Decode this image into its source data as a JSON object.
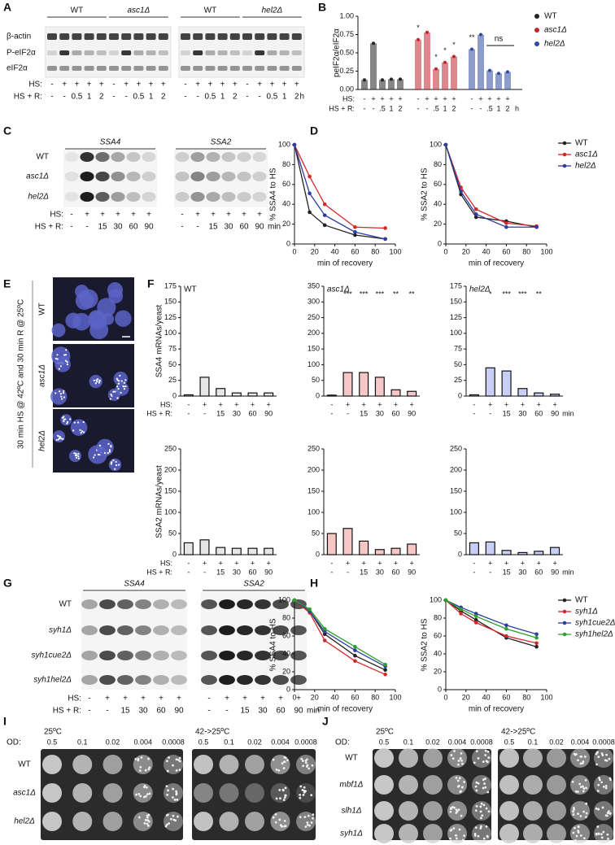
{
  "panels": [
    "A",
    "B",
    "C",
    "D",
    "E",
    "F",
    "G",
    "H",
    "I",
    "J"
  ],
  "blot_a": {
    "groups": [
      "WT",
      "asc1Δ",
      "WT",
      "hel2Δ"
    ],
    "rows": [
      "β-actin",
      "P-eIF2α",
      "eIF2α"
    ],
    "row_labels": [
      "HS:",
      "HS + R:"
    ],
    "hs": [
      "-",
      "+",
      "+",
      "+",
      "+",
      "-",
      "+",
      "+",
      "+",
      "+",
      "-",
      "+",
      "+",
      "+",
      "+",
      "-",
      "+",
      "+",
      "+",
      "+"
    ],
    "hsr": [
      "-",
      "-",
      "0.5",
      "1",
      "2",
      "-",
      "-",
      "0.5",
      "1",
      "2",
      "-",
      "-",
      "0.5",
      "1",
      "2",
      "-",
      "-",
      "0.5",
      "1",
      "2"
    ],
    "unit": "h"
  },
  "blot_c": {
    "genes": [
      "SSA4",
      "SSA2"
    ],
    "strains": [
      "WT",
      "asc1Δ",
      "hel2Δ"
    ],
    "row_labels": [
      "HS:",
      "HS + R:"
    ],
    "hs": [
      "-",
      "+",
      "+",
      "+",
      "+",
      "+",
      "-",
      "+",
      "+",
      "+",
      "+",
      "+"
    ],
    "hsr": [
      "-",
      "-",
      "15",
      "30",
      "60",
      "90",
      "-",
      "-",
      "15",
      "30",
      "60",
      "90"
    ],
    "unit": "min"
  },
  "blot_g": {
    "genes": [
      "SSA4",
      "SSA2"
    ],
    "strains": [
      "WT",
      "syh1Δ",
      "syh1cue2Δ",
      "syh1hel2Δ"
    ],
    "row_labels": [
      "HS:",
      "HS + R:"
    ],
    "hs": [
      "-",
      "+",
      "+",
      "+",
      "+",
      "+",
      "-",
      "+",
      "+",
      "+",
      "+",
      "+"
    ],
    "hsr": [
      "-",
      "-",
      "15",
      "30",
      "60",
      "90",
      "-",
      "-",
      "15",
      "30",
      "60",
      "90"
    ],
    "unit": "min"
  },
  "micrograph": {
    "strains": [
      "WT",
      "asc1Δ",
      "hel2Δ"
    ],
    "condition": "30 min HS @ 42ºC and 30 min R @ 25ºC"
  },
  "plates_i": {
    "temps": [
      "25ºC",
      "42->25ºC"
    ],
    "od_label": "OD:",
    "od": [
      "0.5",
      "0.1",
      "0.02",
      "0.004",
      "0.0008"
    ],
    "strains": [
      "WT",
      "asc1Δ",
      "hel2Δ"
    ]
  },
  "plates_j": {
    "temps": [
      "25ºC",
      "42->25ºC"
    ],
    "od_label": "OD:",
    "od": [
      "0.5",
      "0.1",
      "0.02",
      "0.004",
      "0.0008"
    ],
    "strains": [
      "WT",
      "mbf1Δ",
      "slh1Δ",
      "syh1Δ"
    ]
  },
  "chart_data": [
    {
      "type": "bar",
      "ylabel": "peIF2α/eIF2α",
      "ylim": [
        0,
        1
      ],
      "yticks": [
        {
          "value": 0,
          "label": "0.00"
        },
        {
          "value": 0.25,
          "label": "0.25"
        },
        {
          "value": 0.5,
          "label": "0.50"
        },
        {
          "value": 0.75,
          "label": "0.75"
        },
        {
          "value": 1,
          "label": "1.00"
        }
      ],
      "series": [
        {
          "name": "WT",
          "color": "#222222",
          "values": [
            0.13,
            0.63,
            0.13,
            0.14,
            0.14
          ]
        },
        {
          "name": "asc1Δ",
          "color": "#c0272d",
          "values": [
            0.68,
            0.78,
            0.28,
            0.37,
            0.45
          ],
          "annotations": [
            "*",
            null,
            "*",
            "*",
            "*"
          ]
        },
        {
          "name": "hel2Δ",
          "color": "#2f4aa0",
          "values": [
            0.55,
            0.75,
            0.26,
            0.22,
            0.24
          ],
          "annotations": [
            "**",
            null,
            null,
            null,
            null
          ]
        }
      ],
      "hs": [
        "-",
        "+",
        "+",
        "+",
        "+",
        "-",
        "+",
        "+",
        "+",
        "+",
        "-",
        "+",
        "+",
        "+",
        "+"
      ],
      "hsr": [
        "-",
        "-",
        ".5",
        "1",
        "2",
        "-",
        "-",
        ".5",
        "1",
        "2",
        "-",
        "-",
        ".5",
        "1",
        "2"
      ],
      "row_labels": [
        "HS:",
        "HS + R:"
      ],
      "unit": "h",
      "bracket_label": "ns",
      "legend": "right"
    },
    {
      "type": "line",
      "ylabel": "% SSA4 to HS",
      "xlabel": "min of recovery",
      "x": [
        0,
        15,
        30,
        60,
        90
      ],
      "xlim": [
        0,
        100
      ],
      "xticks": [
        0,
        20,
        40,
        60,
        80,
        100
      ],
      "ylim": [
        0,
        100
      ],
      "yticks": [
        0,
        20,
        40,
        60,
        80,
        100
      ],
      "series": [
        {
          "color": "#222222",
          "values": [
            100,
            32,
            19,
            9,
            5
          ]
        },
        {
          "color": "#d62728",
          "values": [
            100,
            68,
            40,
            17,
            16
          ]
        },
        {
          "color": "#2c3e9e",
          "values": [
            100,
            51,
            29,
            12,
            5
          ]
        }
      ]
    },
    {
      "type": "line",
      "ylabel": "% SSA2 to HS",
      "xlabel": "min of recovery",
      "x": [
        0,
        15,
        30,
        60,
        90
      ],
      "xlim": [
        0,
        100
      ],
      "xticks": [
        0,
        20,
        40,
        60,
        80,
        100
      ],
      "ylim": [
        0,
        100
      ],
      "yticks": [
        0,
        20,
        40,
        60,
        80,
        100
      ],
      "series": [
        {
          "name": "WT",
          "color": "#222222",
          "values": [
            100,
            50,
            27,
            23,
            17
          ]
        },
        {
          "name": "asc1Δ",
          "color": "#d62728",
          "values": [
            100,
            57,
            35,
            21,
            18
          ]
        },
        {
          "name": "hel2Δ",
          "color": "#2c3e9e",
          "values": [
            100,
            53,
            30,
            17,
            17
          ]
        }
      ],
      "legend": "right"
    },
    {
      "type": "bar",
      "title": "WT",
      "ylabel": "SSA4 mRNAs/yeast",
      "ylim": [
        0,
        175
      ],
      "yticks": [
        0,
        25,
        50,
        75,
        100,
        125,
        150,
        175
      ],
      "color": "#9a9a9a",
      "values": [
        2,
        30,
        12,
        5,
        5,
        5
      ],
      "hs": [
        "-",
        "+",
        "+",
        "+",
        "+",
        "+"
      ],
      "hsr": [
        "-",
        "-",
        "15",
        "30",
        "60",
        "90"
      ],
      "row_labels": [
        "HS:",
        "HS + R:"
      ]
    },
    {
      "type": "bar",
      "title": "asc1Δ",
      "ylim": [
        0,
        350
      ],
      "yticks": [
        0,
        50,
        100,
        150,
        200,
        250,
        300,
        350
      ],
      "color": "#e02020",
      "values": [
        3,
        75,
        75,
        60,
        20,
        15
      ],
      "annotations": [
        null,
        "***",
        "***",
        "***",
        "**",
        "**"
      ],
      "hs": [
        "-",
        "+",
        "+",
        "+",
        "+",
        "+"
      ],
      "hsr": [
        "-",
        "-",
        "15",
        "30",
        "60",
        "90"
      ]
    },
    {
      "type": "bar",
      "title": "hel2Δ",
      "ylim": [
        0,
        175
      ],
      "yticks": [
        0,
        25,
        50,
        75,
        100,
        125,
        150,
        175
      ],
      "color": "#2040e0",
      "values": [
        2,
        45,
        40,
        12,
        5,
        3
      ],
      "annotations": [
        null,
        "*",
        "***",
        "***",
        "**",
        null
      ],
      "hs": [
        "-",
        "+",
        "+",
        "+",
        "+",
        "+"
      ],
      "hsr": [
        "-",
        "-",
        "15",
        "30",
        "60",
        "90"
      ],
      "unit": "min"
    },
    {
      "type": "bar",
      "ylabel": "SSA2 mRNAs/yeast",
      "ylim": [
        0,
        250
      ],
      "yticks": [
        0,
        50,
        100,
        150,
        200,
        250
      ],
      "color": "#9a9a9a",
      "values": [
        28,
        35,
        17,
        15,
        15,
        15
      ],
      "hs": [
        "-",
        "+",
        "+",
        "+",
        "+",
        "+"
      ],
      "hsr": [
        "-",
        "-",
        "15",
        "30",
        "60",
        "90"
      ],
      "row_labels": [
        "HS:",
        "HS + R:"
      ]
    },
    {
      "type": "bar",
      "ylim": [
        0,
        250
      ],
      "yticks": [
        0,
        50,
        100,
        150,
        200,
        250
      ],
      "color": "#e02020",
      "values": [
        50,
        62,
        32,
        12,
        15,
        25
      ],
      "hs": [
        "-",
        "+",
        "+",
        "+",
        "+",
        "+"
      ],
      "hsr": [
        "-",
        "-",
        "15",
        "30",
        "60",
        "90"
      ]
    },
    {
      "type": "bar",
      "ylim": [
        0,
        250
      ],
      "yticks": [
        0,
        50,
        100,
        150,
        200,
        250
      ],
      "color": "#2040e0",
      "values": [
        28,
        30,
        10,
        5,
        8,
        17
      ],
      "hs": [
        "-",
        "+",
        "+",
        "+",
        "+",
        "+"
      ],
      "hsr": [
        "-",
        "-",
        "15",
        "30",
        "60",
        "90"
      ],
      "unit": "min"
    },
    {
      "type": "line",
      "ylabel": "% SSA4 to HS",
      "xlabel": "min of recovery",
      "x": [
        0,
        15,
        30,
        60,
        90
      ],
      "xlim": [
        0,
        100
      ],
      "xticks": [
        0,
        20,
        40,
        60,
        80,
        100
      ],
      "ylim": [
        0,
        100
      ],
      "yticks": [
        0,
        20,
        40,
        60,
        80,
        100
      ],
      "series": [
        {
          "color": "#222222",
          "values": [
            100,
            88,
            62,
            38,
            22
          ]
        },
        {
          "color": "#d62728",
          "values": [
            100,
            86,
            55,
            32,
            17
          ]
        },
        {
          "color": "#2c3e9e",
          "values": [
            100,
            88,
            65,
            44,
            26
          ]
        },
        {
          "color": "#2ca02c",
          "values": [
            100,
            90,
            68,
            48,
            28
          ]
        }
      ]
    },
    {
      "type": "line",
      "ylabel": "% SSA2 to HS",
      "xlabel": "min of recovery",
      "x": [
        0,
        15,
        30,
        60,
        90
      ],
      "xlim": [
        0,
        100
      ],
      "xticks": [
        0,
        20,
        40,
        60,
        80,
        100
      ],
      "ylim": [
        0,
        100
      ],
      "yticks": [
        0,
        20,
        40,
        60,
        80,
        100
      ],
      "series": [
        {
          "name": "WT",
          "color": "#222222",
          "values": [
            100,
            88,
            78,
            58,
            48
          ]
        },
        {
          "name": "syh1Δ",
          "color": "#d62728",
          "values": [
            100,
            85,
            75,
            60,
            52
          ]
        },
        {
          "name": "syh1cue2Δ",
          "color": "#2c3e9e",
          "values": [
            100,
            92,
            85,
            72,
            62
          ]
        },
        {
          "name": "syh1hel2Δ",
          "color": "#2ca02c",
          "values": [
            100,
            90,
            82,
            68,
            58
          ]
        }
      ],
      "legend": "right"
    }
  ]
}
